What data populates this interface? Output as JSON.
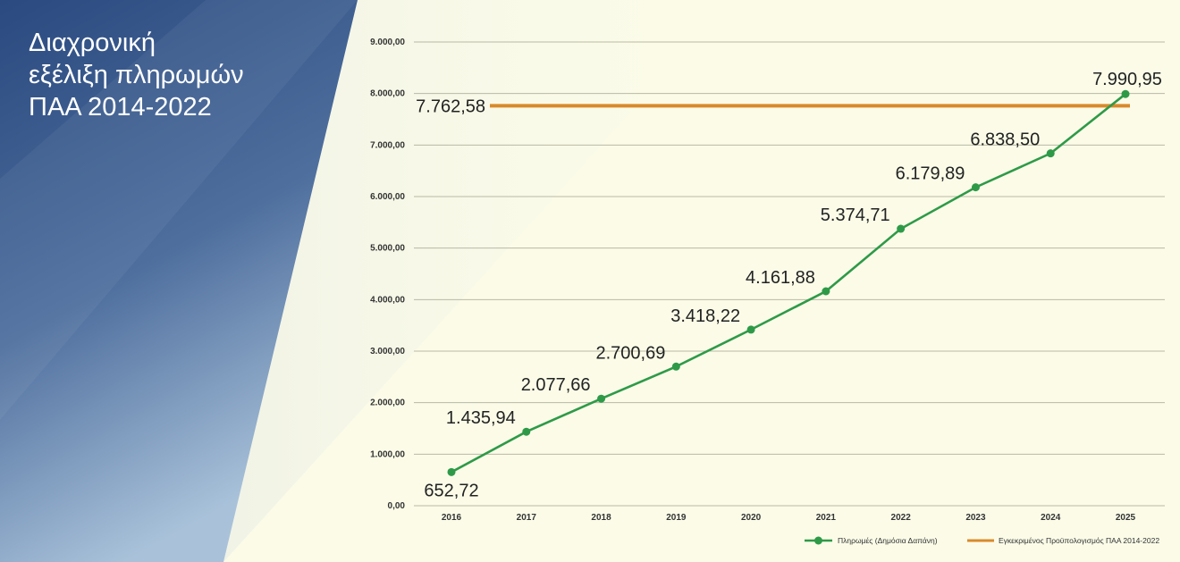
{
  "title_lines": [
    "Διαχρονική",
    "εξέλιξη πληρωμών",
    "ΠΑΑ 2014-2022"
  ],
  "colors": {
    "payments": "#2e9a48",
    "budget": "#d98a2b",
    "panel_dark": "#2f4f82"
  },
  "chart_data": {
    "type": "line",
    "x": [
      "2016",
      "2017",
      "2018",
      "2019",
      "2020",
      "2021",
      "2022",
      "2023",
      "2024",
      "2025"
    ],
    "ylim": [
      0,
      9000
    ],
    "yticks": [
      "0,00",
      "1.000,00",
      "2.000,00",
      "3.000,00",
      "4.000,00",
      "5.000,00",
      "6.000,00",
      "7.000,00",
      "8.000,00",
      "9.000,00"
    ],
    "grid": true,
    "legend_position": "bottom-right",
    "series": [
      {
        "name": "Πληρωμές (Δημόσια Δαπάνη)",
        "type": "line",
        "values": [
          652.72,
          1435.94,
          2077.66,
          2700.69,
          3418.22,
          4161.88,
          5374.71,
          6179.89,
          6838.5,
          7990.95
        ],
        "labels": [
          "652,72",
          "1.435,94",
          "2.077,66",
          "2.700,69",
          "3.418,22",
          "4.161,88",
          "5.374,71",
          "6.179,89",
          "6.838,50",
          "7.990,95"
        ]
      },
      {
        "name": "Εγκεκριμένος Προϋπολογισμός ΠΑΑ 2014-2022",
        "type": "constant",
        "value": 7762.58,
        "label": "7.762,58"
      }
    ]
  }
}
